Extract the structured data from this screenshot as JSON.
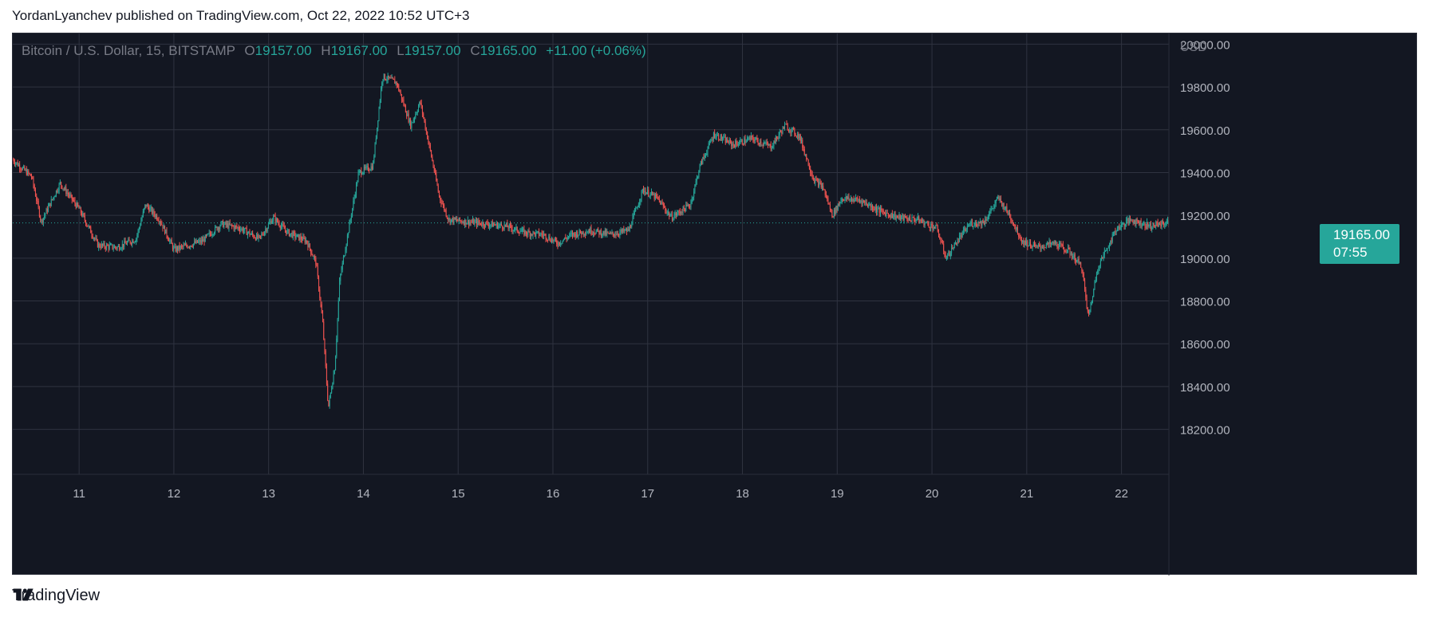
{
  "header": {
    "text": "YordanLyanchev published on TradingView.com, Oct 22, 2022 10:52 UTC+3"
  },
  "legend": {
    "symbol": "Bitcoin / U.S. Dollar, 15, BITSTAMP",
    "o_label": "O",
    "o_value": "19157.00",
    "h_label": "H",
    "h_value": "19167.00",
    "l_label": "L",
    "l_value": "19157.00",
    "c_label": "C",
    "c_value": "19165.00",
    "change": "+11.00 (+0.06%)"
  },
  "price_axis": {
    "currency": "USD",
    "last_price": "19165.00",
    "countdown": "07:55"
  },
  "footer": {
    "brand": "TradingView"
  },
  "colors": {
    "up": "#26a69a",
    "down": "#ef5350",
    "background": "#131722",
    "grid": "#2f3340"
  },
  "chart_data": {
    "type": "candlestick",
    "interval": "15",
    "exchange": "BITSTAMP",
    "x_tick_labels": [
      "11",
      "12",
      "13",
      "14",
      "15",
      "16",
      "17",
      "18",
      "19",
      "20",
      "21",
      "22"
    ],
    "y_tick_labels": [
      "20000.00",
      "19800.00",
      "19600.00",
      "19400.00",
      "19200.00",
      "19000.00",
      "18800.00",
      "18600.00",
      "18400.00",
      "18200.00"
    ],
    "ylim": [
      17990,
      20050
    ],
    "xlim": [
      10.3,
      22.5
    ],
    "grid": true,
    "last_price": 19165,
    "close_path": [
      [
        10.3,
        19460
      ],
      [
        10.5,
        19380
      ],
      [
        10.6,
        19170
      ],
      [
        10.8,
        19350
      ],
      [
        11.0,
        19230
      ],
      [
        11.2,
        19060
      ],
      [
        11.4,
        19050
      ],
      [
        11.6,
        19090
      ],
      [
        11.7,
        19250
      ],
      [
        11.85,
        19180
      ],
      [
        12.0,
        19040
      ],
      [
        12.3,
        19080
      ],
      [
        12.5,
        19160
      ],
      [
        12.7,
        19140
      ],
      [
        12.9,
        19090
      ],
      [
        13.05,
        19190
      ],
      [
        13.2,
        19120
      ],
      [
        13.4,
        19080
      ],
      [
        13.5,
        18980
      ],
      [
        13.57,
        18700
      ],
      [
        13.63,
        18300
      ],
      [
        13.7,
        18500
      ],
      [
        13.75,
        18900
      ],
      [
        13.85,
        19150
      ],
      [
        13.95,
        19400
      ],
      [
        14.1,
        19430
      ],
      [
        14.2,
        19850
      ],
      [
        14.35,
        19820
      ],
      [
        14.5,
        19620
      ],
      [
        14.6,
        19730
      ],
      [
        14.72,
        19470
      ],
      [
        14.8,
        19290
      ],
      [
        14.9,
        19180
      ],
      [
        15.1,
        19170
      ],
      [
        15.3,
        19160
      ],
      [
        15.5,
        19150
      ],
      [
        15.7,
        19120
      ],
      [
        15.9,
        19110
      ],
      [
        16.05,
        19070
      ],
      [
        16.2,
        19110
      ],
      [
        16.4,
        19130
      ],
      [
        16.6,
        19110
      ],
      [
        16.8,
        19130
      ],
      [
        16.95,
        19320
      ],
      [
        17.1,
        19280
      ],
      [
        17.25,
        19190
      ],
      [
        17.45,
        19250
      ],
      [
        17.55,
        19430
      ],
      [
        17.7,
        19580
      ],
      [
        17.9,
        19530
      ],
      [
        18.1,
        19560
      ],
      [
        18.3,
        19520
      ],
      [
        18.45,
        19620
      ],
      [
        18.6,
        19570
      ],
      [
        18.75,
        19370
      ],
      [
        18.85,
        19330
      ],
      [
        18.95,
        19200
      ],
      [
        19.05,
        19280
      ],
      [
        19.25,
        19270
      ],
      [
        19.45,
        19220
      ],
      [
        19.65,
        19190
      ],
      [
        19.85,
        19180
      ],
      [
        20.05,
        19140
      ],
      [
        20.15,
        19000
      ],
      [
        20.25,
        19070
      ],
      [
        20.4,
        19160
      ],
      [
        20.55,
        19170
      ],
      [
        20.7,
        19280
      ],
      [
        20.82,
        19200
      ],
      [
        20.95,
        19080
      ],
      [
        21.1,
        19050
      ],
      [
        21.3,
        19070
      ],
      [
        21.45,
        19030
      ],
      [
        21.58,
        18960
      ],
      [
        21.65,
        18720
      ],
      [
        21.75,
        18960
      ],
      [
        21.85,
        19050
      ],
      [
        21.95,
        19140
      ],
      [
        22.1,
        19180
      ],
      [
        22.3,
        19150
      ],
      [
        22.47,
        19165
      ]
    ]
  }
}
